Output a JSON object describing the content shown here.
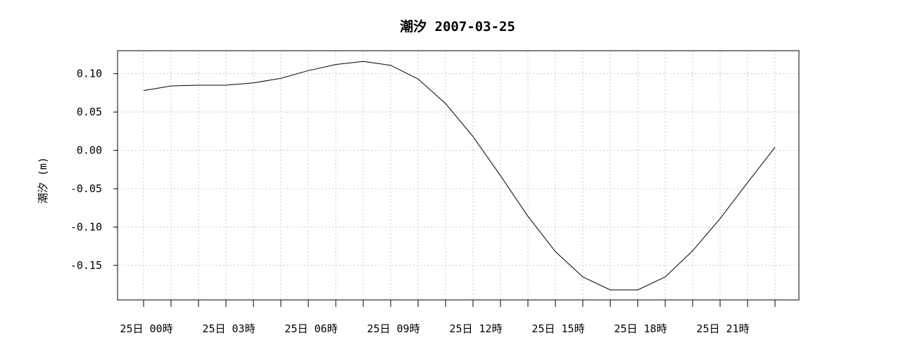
{
  "chart_data": {
    "type": "line",
    "title": "潮汐 2007-03-25",
    "xlabel": "",
    "ylabel": "潮汐 (m)",
    "ylim": [
      -0.195,
      0.13
    ],
    "yticks": [
      "0.10",
      "0.05",
      "0.00",
      "-0.05",
      "-0.10",
      "-0.15"
    ],
    "ytick_values": [
      0.1,
      0.05,
      0.0,
      -0.05,
      -0.1,
      -0.15
    ],
    "xticks_count": 24,
    "xtick_labels": [
      {
        "hour": 0,
        "label": "25日 00時"
      },
      {
        "hour": 3,
        "label": "25日 03時"
      },
      {
        "hour": 6,
        "label": "25日 06時"
      },
      {
        "hour": 9,
        "label": "25日 09時"
      },
      {
        "hour": 12,
        "label": "25日 12時"
      },
      {
        "hour": 15,
        "label": "25日 15時"
      },
      {
        "hour": 18,
        "label": "25日 18時"
      },
      {
        "hour": 21,
        "label": "25日 21時"
      }
    ],
    "grid": true,
    "series": [
      {
        "x": [
          0,
          1,
          2,
          3,
          4,
          5,
          6,
          7,
          8,
          9,
          10,
          11,
          12,
          13,
          14,
          15,
          16,
          17,
          18,
          19,
          20,
          21,
          22,
          23
        ],
        "values": [
          0.078,
          0.084,
          0.085,
          0.085,
          0.088,
          0.094,
          0.104,
          0.112,
          0.116,
          0.111,
          0.093,
          0.061,
          0.018,
          -0.033,
          -0.086,
          -0.132,
          -0.165,
          -0.182,
          -0.182,
          -0.165,
          -0.131,
          -0.089,
          -0.042,
          0.004
        ]
      }
    ]
  }
}
